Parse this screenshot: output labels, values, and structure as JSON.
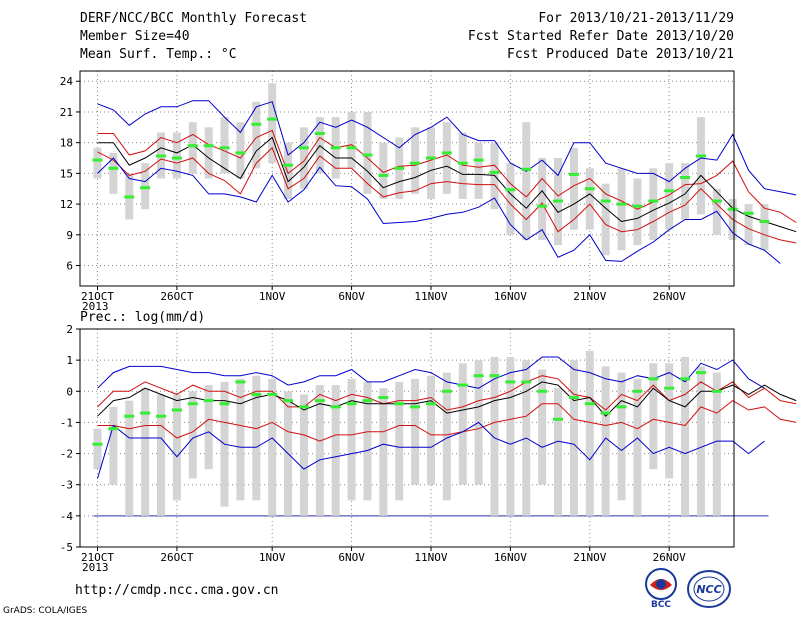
{
  "header": {
    "title": "DERF/NCC/BCC Monthly Forecast",
    "member_size": "Member Size=40",
    "variable": "Mean Surf. Temp.: °C",
    "period": "For 2013/10/21-2013/11/29",
    "fcst_started": "Fcst Started Refer Date 2013/10/20",
    "fcst_produced": "Fcst Produced Date 2013/10/21"
  },
  "lower_label": "Prec.: log(mm/d)",
  "footer": {
    "url": "http://cmdp.ncc.cma.gov.cn",
    "grads": "GrADS: COLA/IGES",
    "logo_bcc": "BCC",
    "logo_ncc": "NCC"
  },
  "colors": {
    "max_min_line": "#0000cc",
    "spread_line": "#d01010",
    "mean_line": "#000000",
    "box": "#d4d4d4",
    "marker": "#33ee33"
  },
  "chart_data": [
    {
      "type": "line",
      "title": "Mean Surf. Temp.: °C",
      "x_ticks": [
        "21OCT",
        "26OCT",
        "1NOV",
        "6NOV",
        "11NOV",
        "16NOV",
        "21NOV",
        "26NOV"
      ],
      "x_year_label": "2013",
      "y_ticks": [
        6,
        9,
        12,
        15,
        18,
        21,
        24
      ],
      "ylim": [
        4,
        25
      ],
      "grid": true,
      "series": [
        {
          "role": "upper",
          "values": [
            21.8,
            21.2,
            19.7,
            20.8,
            21.5,
            21.5,
            22.1,
            22.1,
            20.5,
            19,
            21.5,
            22,
            16.8,
            18,
            20,
            19.5,
            20.2,
            19.5,
            18.5,
            17.5,
            18.8,
            19.5,
            20.5,
            18.8,
            18.2,
            18.2,
            16,
            15.2,
            16.3,
            14.8,
            18,
            18,
            16,
            15.5,
            15,
            15,
            14.2,
            15.5,
            16.5,
            16.3,
            18.8,
            15.3,
            13.5,
            13.2,
            12.9
          ]
        },
        {
          "role": "upper_spread",
          "values": [
            18.9,
            18.9,
            16.8,
            17.2,
            18.5,
            18,
            18.8,
            17.8,
            17.2,
            16.5,
            18.5,
            19.2,
            15,
            16.2,
            18.5,
            17.5,
            17.8,
            16.5,
            15.1,
            15.7,
            15.8,
            16.3,
            16.8,
            15.8,
            15.6,
            15.8,
            14,
            12.7,
            14.5,
            12.8,
            13.8,
            14.5,
            13,
            12.3,
            11.5,
            12.2,
            12.9,
            13.9,
            14,
            14.8,
            16.2,
            13.2,
            11.6,
            11.2,
            10.2
          ]
        },
        {
          "role": "mean",
          "values": [
            18,
            18,
            15.8,
            16.5,
            17.5,
            17,
            17.8,
            16.5,
            15.5,
            14.5,
            17.2,
            18.5,
            14.2,
            15.6,
            17.7,
            16.5,
            16.5,
            15.2,
            13.6,
            14.2,
            14.6,
            15.3,
            15.7,
            14.9,
            14.9,
            14.8,
            13,
            11.6,
            13.3,
            11.2,
            12,
            13,
            11.6,
            10.3,
            10.6,
            11.4,
            12.1,
            13,
            14.8,
            13.2,
            11.6,
            10.8,
            10.3,
            9.8,
            9.3
          ]
        },
        {
          "role": "lower_spread",
          "values": [
            17.1,
            16.3,
            14.8,
            15.2,
            16.4,
            16,
            16.5,
            15,
            14.3,
            13,
            16,
            17.5,
            13.5,
            14.5,
            16.7,
            15.5,
            15.5,
            14,
            12.7,
            13.1,
            13.3,
            14,
            14.2,
            14,
            13.9,
            13.9,
            12,
            10.5,
            12.1,
            9.3,
            10.5,
            12,
            10,
            9.3,
            9.5,
            10.3,
            11.2,
            11.9,
            13.5,
            12,
            10.5,
            9.6,
            9,
            8.5,
            8.2
          ]
        },
        {
          "role": "lower",
          "values": [
            15,
            16.5,
            14.5,
            14.2,
            15.5,
            15.2,
            14.8,
            13,
            13,
            12.7,
            12.2,
            14.8,
            12.2,
            13.4,
            15.6,
            13.8,
            13.7,
            12.5,
            10.1,
            10.2,
            10.3,
            10.6,
            11,
            11.2,
            11.7,
            12.6,
            10,
            8.5,
            9.5,
            6.8,
            7.5,
            9,
            6.5,
            6.4,
            7.4,
            8.3,
            9.5,
            10.5,
            10.5,
            11.3,
            9.2,
            8.1,
            7.5,
            6.2
          ]
        }
      ],
      "boxes": [
        [
          14.5,
          17.5,
          16.3
        ],
        [
          13,
          17,
          15.5
        ],
        [
          10.5,
          15,
          12.7
        ],
        [
          11.5,
          16,
          13.6
        ],
        [
          14.5,
          19,
          16.7
        ],
        [
          14.5,
          19,
          16.5
        ],
        [
          15,
          20,
          17.7
        ],
        [
          14.5,
          19.5,
          17.7
        ],
        [
          15,
          20.5,
          17.5
        ],
        [
          14.5,
          20,
          17
        ],
        [
          15.5,
          22,
          19.8
        ],
        [
          16,
          23.8,
          20.3
        ],
        [
          12.5,
          18,
          15.8
        ],
        [
          13.5,
          19.5,
          17.5
        ],
        [
          15,
          20.5,
          18.9
        ],
        [
          14.5,
          20.5,
          17.5
        ],
        [
          15.5,
          21,
          17.5
        ],
        [
          13,
          21,
          16.8
        ],
        [
          12.5,
          18,
          14.8
        ],
        [
          12.5,
          18.5,
          15.5
        ],
        [
          13,
          19.5,
          16
        ],
        [
          12.5,
          19.5,
          16.5
        ],
        [
          13,
          20,
          17
        ],
        [
          12.5,
          19,
          16
        ],
        [
          12.5,
          18,
          16.3
        ],
        [
          11.5,
          18,
          15.1
        ],
        [
          9,
          16,
          13.4
        ],
        [
          8.5,
          20,
          15.4
        ],
        [
          8.5,
          16.5,
          11.8
        ],
        [
          8,
          16.5,
          12.3
        ],
        [
          9.5,
          17.5,
          14.9
        ],
        [
          9.5,
          15.5,
          13.5
        ],
        [
          7,
          14,
          12.3
        ],
        [
          7.5,
          15.5,
          12
        ],
        [
          8,
          14.5,
          11.8
        ],
        [
          8.5,
          15.5,
          12.3
        ],
        [
          9.5,
          16,
          13.3
        ],
        [
          10.5,
          16,
          14.6
        ],
        [
          11,
          20.5,
          16.7
        ],
        [
          9,
          13.5,
          12.3
        ],
        [
          8.5,
          12.5,
          11.5
        ],
        [
          8,
          12,
          11.1
        ],
        [
          7.5,
          12,
          10.3
        ]
      ]
    },
    {
      "type": "line",
      "title": "Prec.: log(mm/d)",
      "x_ticks": [
        "21OCT",
        "26OCT",
        "1NOV",
        "6NOV",
        "11NOV",
        "16NOV",
        "21NOV",
        "26NOV"
      ],
      "x_year_label": "2013",
      "y_ticks": [
        -5,
        -4,
        -3,
        -2,
        -1,
        0,
        1,
        2
      ],
      "ylim": [
        -5,
        2
      ],
      "grid": true,
      "baseline": -4,
      "series": [
        {
          "role": "upper",
          "values": [
            0.1,
            0.6,
            0.8,
            0.8,
            0.8,
            0.7,
            0.6,
            0.6,
            0.5,
            0.5,
            0.6,
            0.5,
            0.2,
            0.3,
            0.5,
            0.5,
            0.7,
            0.3,
            0.3,
            0.5,
            0.7,
            0.6,
            0.3,
            0.2,
            0.1,
            0.4,
            0.6,
            0.7,
            1.1,
            1.1,
            0.7,
            0.6,
            0.4,
            0.3,
            0.5,
            0.4,
            0.6,
            0.3,
            0.9,
            0.7,
            1,
            0.4,
            0.1
          ]
        },
        {
          "role": "upper_spread",
          "values": [
            -0.5,
            0,
            0,
            0.3,
            0.1,
            -0.1,
            0.2,
            0,
            0,
            -0.2,
            0,
            0,
            -0.5,
            -0.5,
            -0.1,
            -0.3,
            -0.1,
            -0.2,
            -0.4,
            -0.3,
            -0.3,
            -0.2,
            -0.6,
            -0.5,
            -0.3,
            -0.2,
            0,
            0.3,
            0.5,
            0.4,
            -0.1,
            -0.2,
            -0.6,
            -0.1,
            -0.3,
            0.2,
            -0.3,
            -0.1,
            0.3,
            0,
            0.3,
            -0.2,
            0.1,
            -0.3,
            -0.4
          ]
        },
        {
          "role": "mean",
          "values": [
            -0.8,
            -0.3,
            -0.2,
            0.1,
            -0.1,
            -0.3,
            -0.2,
            -0.3,
            -0.3,
            -0.4,
            -0.2,
            -0.1,
            -0.3,
            -0.6,
            -0.4,
            -0.5,
            -0.3,
            -0.4,
            -0.4,
            -0.4,
            -0.4,
            -0.3,
            -0.7,
            -0.6,
            -0.5,
            -0.3,
            -0.2,
            0,
            0.3,
            0.2,
            -0.3,
            -0.2,
            -0.8,
            -0.3,
            -0.5,
            0.1,
            -0.3,
            -0.5,
            0,
            0,
            0.2,
            -0.1,
            0.2,
            -0.1,
            -0.3
          ]
        },
        {
          "role": "lower_spread",
          "values": [
            -1.1,
            -1.1,
            -1.2,
            -1.1,
            -1.1,
            -1.5,
            -1.3,
            -0.9,
            -1,
            -1.1,
            -1.2,
            -1,
            -1.3,
            -1.4,
            -1.6,
            -1.4,
            -1.4,
            -1.3,
            -1.3,
            -1.1,
            -1.1,
            -1.4,
            -1.4,
            -1.3,
            -1.2,
            -1,
            -0.9,
            -0.8,
            -0.4,
            -0.4,
            -0.9,
            -1,
            -1.1,
            -1,
            -1.2,
            -0.9,
            -1,
            -1.1,
            -0.5,
            -0.7,
            -0.3,
            -0.6,
            -0.5,
            -0.9,
            -1
          ]
        },
        {
          "role": "lower",
          "values": [
            -2.8,
            -1.1,
            -1.5,
            -1.5,
            -1.5,
            -2.1,
            -1.5,
            -1.3,
            -1.7,
            -1.8,
            -1.8,
            -1.5,
            -2,
            -2.5,
            -2.2,
            -2.1,
            -2,
            -1.9,
            -1.7,
            -1.8,
            -1.8,
            -1.8,
            -1.5,
            -1.3,
            -1,
            -1.5,
            -1.7,
            -1.5,
            -1.8,
            -1.6,
            -1.7,
            -2.2,
            -1.5,
            -1.9,
            -1.5,
            -2,
            -1.8,
            -2,
            -1.8,
            -1.6,
            -1.6,
            -2,
            -1.6
          ]
        }
      ],
      "boxes": [
        [
          -2.5,
          -1.2,
          -1.7
        ],
        [
          -3,
          -0.5,
          -1.2
        ],
        [
          -4,
          -0.3,
          -0.8
        ],
        [
          -4,
          0.1,
          -0.7
        ],
        [
          -4,
          -0.1,
          -0.8
        ],
        [
          -3.5,
          -0.1,
          -0.6
        ],
        [
          -2.8,
          0,
          -0.4
        ],
        [
          -2.5,
          0.2,
          -0.3
        ],
        [
          -3.7,
          0.3,
          -0.4
        ],
        [
          -3.5,
          0.4,
          0.3
        ],
        [
          -3.5,
          0.5,
          -0.1
        ],
        [
          -4,
          0.4,
          -0.1
        ],
        [
          -4,
          0,
          -0.3
        ],
        [
          -4,
          -0.1,
          -0.5
        ],
        [
          -4,
          0.2,
          -0.3
        ],
        [
          -4,
          0.2,
          -0.5
        ],
        [
          -3.5,
          0.4,
          -0.4
        ],
        [
          -3.5,
          0.3,
          -0.3
        ],
        [
          -4,
          0.1,
          -0.2
        ],
        [
          -3.5,
          0.3,
          -0.4
        ],
        [
          -3,
          0.4,
          -0.5
        ],
        [
          -3,
          0.5,
          -0.4
        ],
        [
          -3.5,
          0.6,
          0
        ],
        [
          -3,
          0.9,
          0.2
        ],
        [
          -3,
          1,
          0.5
        ],
        [
          -4,
          1.1,
          0.5
        ],
        [
          -4,
          1.1,
          0.3
        ],
        [
          -4,
          1,
          0.3
        ],
        [
          -3,
          0.7,
          0
        ],
        [
          -4,
          0.1,
          -0.9
        ],
        [
          -4,
          1,
          -0.2
        ],
        [
          -4,
          1.3,
          -0.4
        ],
        [
          -4,
          0.8,
          -0.7
        ],
        [
          -3.5,
          0.6,
          -0.5
        ],
        [
          -4,
          0.4,
          0
        ],
        [
          -2.5,
          0.9,
          0.4
        ],
        [
          -2.8,
          0.9,
          0.1
        ],
        [
          -4,
          1.1,
          0.4
        ],
        [
          -4,
          0.8,
          0.6
        ],
        [
          -4,
          0.6,
          0
        ]
      ]
    }
  ]
}
